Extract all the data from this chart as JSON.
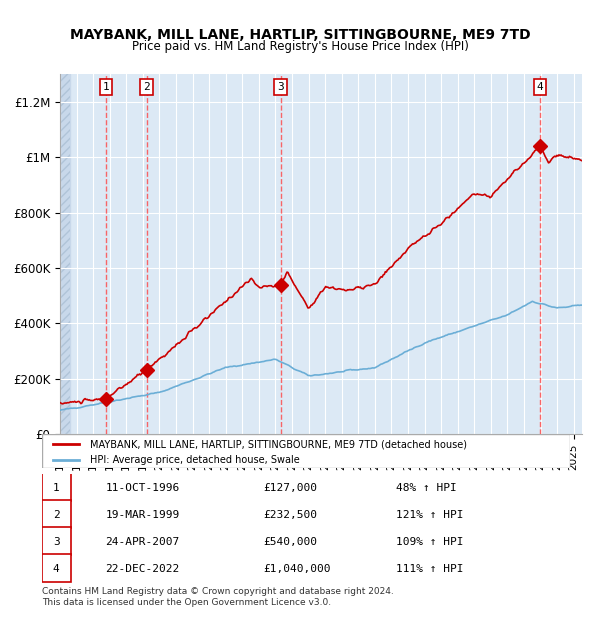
{
  "title": "MAYBANK, MILL LANE, HARTLIP, SITTINGBOURNE, ME9 7TD",
  "subtitle": "Price paid vs. HM Land Registry's House Price Index (HPI)",
  "x_start": 1994.0,
  "x_end": 2025.5,
  "y_min": 0,
  "y_max": 1300000,
  "y_ticks": [
    0,
    200000,
    400000,
    600000,
    800000,
    1000000,
    1200000
  ],
  "y_tick_labels": [
    "£0",
    "£200K",
    "£400K",
    "£600K",
    "£800K",
    "£1M",
    "£1.2M"
  ],
  "x_ticks": [
    1994,
    1995,
    1996,
    1997,
    1998,
    1999,
    2000,
    2001,
    2002,
    2003,
    2004,
    2005,
    2006,
    2007,
    2008,
    2009,
    2010,
    2011,
    2012,
    2013,
    2014,
    2015,
    2016,
    2017,
    2018,
    2019,
    2020,
    2021,
    2022,
    2023,
    2024,
    2025
  ],
  "sale_dates": [
    1996.78,
    1999.22,
    2007.31,
    2022.97
  ],
  "sale_prices": [
    127000,
    232500,
    540000,
    1040000
  ],
  "sale_labels": [
    "1",
    "2",
    "3",
    "4"
  ],
  "hpi_color": "#6baed6",
  "price_color": "#cc0000",
  "background_color": "#dce9f5",
  "hatch_color": "#b0c4d8",
  "grid_color": "#ffffff",
  "dashed_line_color": "#ff4444",
  "legend_label_red": "MAYBANK, MILL LANE, HARTLIP, SITTINGBOURNE, ME9 7TD (detached house)",
  "legend_label_blue": "HPI: Average price, detached house, Swale",
  "table_rows": [
    [
      "1",
      "11-OCT-1996",
      "£127,000",
      "48% ↑ HPI"
    ],
    [
      "2",
      "19-MAR-1999",
      "£232,500",
      "121% ↑ HPI"
    ],
    [
      "3",
      "24-APR-2007",
      "£540,000",
      "109% ↑ HPI"
    ],
    [
      "4",
      "22-DEC-2022",
      "£1,040,000",
      "111% ↑ HPI"
    ]
  ],
  "footnote1": "Contains HM Land Registry data © Crown copyright and database right 2024.",
  "footnote2": "This data is licensed under the Open Government Licence v3.0."
}
